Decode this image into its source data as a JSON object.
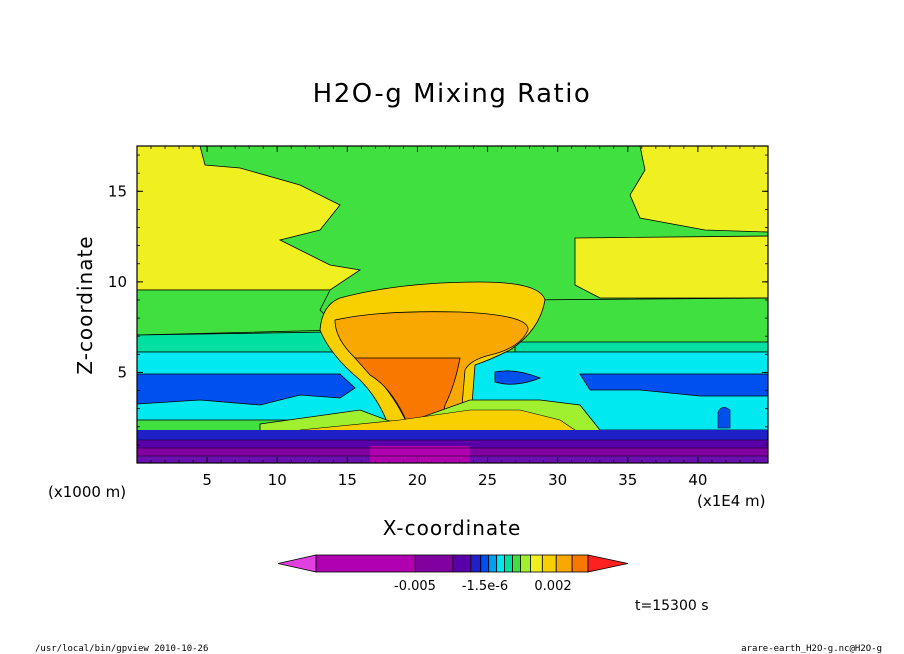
{
  "chart_data": {
    "type": "contour",
    "title": "H2O-g Mixing Ratio",
    "xlabel": "X-coordinate",
    "ylabel": "Z-coordinate",
    "x_unit": "(x1E4 m)",
    "y_unit": "(x1000 m)",
    "xlim": [
      0,
      45
    ],
    "ylim": [
      0,
      17.5
    ],
    "x_ticks": [
      5,
      10,
      15,
      20,
      25,
      30,
      35,
      40
    ],
    "y_ticks": [
      5,
      10,
      15
    ],
    "time_label": "t=15300 s",
    "colorbar": {
      "tick_labels": [
        "-0.005",
        "-1.5e-6",
        "0.002"
      ],
      "colors": [
        "#e040e0",
        "#b000b0",
        "#8000a0",
        "#5a00a8",
        "#2020c8",
        "#0050f0",
        "#00a0f0",
        "#00e8f0",
        "#00e0a0",
        "#40e040",
        "#a0f030",
        "#f0f020",
        "#f8d000",
        "#f8a800",
        "#f87800",
        "#ff2020"
      ]
    }
  },
  "footer": {
    "left": "/usr/local/bin/gpview  2010-10-26",
    "right": "arare-earth_H2O-g.nc@H2O-g"
  }
}
